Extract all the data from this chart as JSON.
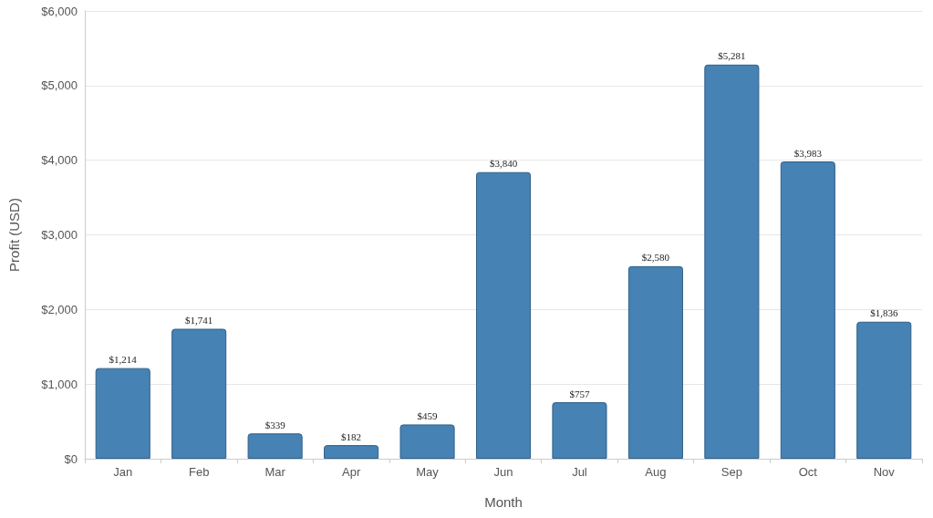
{
  "chart_data": {
    "type": "bar",
    "xlabel": "Month",
    "ylabel": "Profit (USD)",
    "categories": [
      "Jan",
      "Feb",
      "Mar",
      "Apr",
      "May",
      "Jun",
      "Jul",
      "Aug",
      "Sep",
      "Oct",
      "Nov"
    ],
    "values": [
      1214,
      1741,
      339,
      182,
      459,
      3840,
      757,
      2580,
      5281,
      3983,
      1836
    ],
    "value_labels": [
      "$1,214",
      "$1,741",
      "$339",
      "$182",
      "$459",
      "$3,840",
      "$757",
      "$2,580",
      "$5,281",
      "$3,983",
      "$1,836"
    ],
    "color": "#4682b4",
    "ylim": [
      0,
      6000
    ],
    "yticks": [
      {
        "value": 0,
        "label": "$0"
      },
      {
        "value": 1000,
        "label": "$1,000"
      },
      {
        "value": 2000,
        "label": "$2,000"
      },
      {
        "value": 3000,
        "label": "$3,000"
      },
      {
        "value": 4000,
        "label": "$4,000"
      },
      {
        "value": 5000,
        "label": "$5,000"
      },
      {
        "value": 6000,
        "label": "$6,000"
      }
    ],
    "grid": true
  }
}
